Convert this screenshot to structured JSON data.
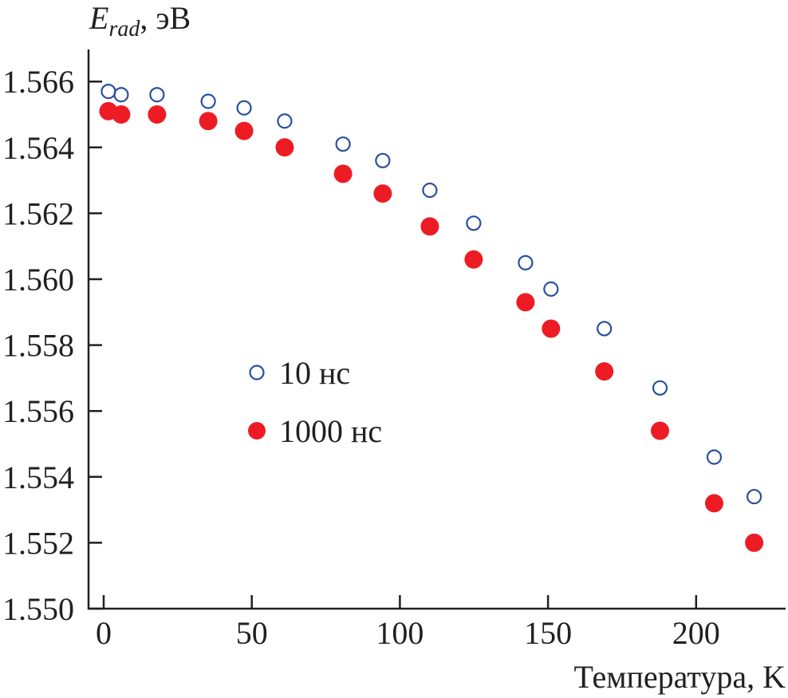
{
  "chart_data": {
    "type": "scatter",
    "title": "",
    "ylabel": {
      "main": "E",
      "subscript": "rad",
      "suffix": ", эВ"
    },
    "xlabel": "Температура, K",
    "xlim": [
      -5,
      230
    ],
    "ylim": [
      1.55,
      1.567
    ],
    "xticks": [
      0,
      50,
      100,
      150,
      200
    ],
    "xtick_labels": [
      "0",
      "50",
      "100",
      "150",
      "200"
    ],
    "yticks": [
      1.55,
      1.552,
      1.554,
      1.556,
      1.558,
      1.56,
      1.562,
      1.564,
      1.566
    ],
    "ytick_labels": [
      "1.550",
      "1.552",
      "1.554",
      "1.556",
      "1.558",
      "1.560",
      "1.562",
      "1.564",
      "1.566"
    ],
    "grid": false,
    "legend_position": "center-left",
    "series": [
      {
        "name": "10 нс",
        "marker": "open-circle",
        "color": "#2a4fa0",
        "x": [
          1.6,
          5.9,
          18,
          35.3,
          47.4,
          61.1,
          80.8,
          94.2,
          110.1,
          124.9,
          142.4,
          151,
          169,
          187.8,
          206.1,
          219.6
        ],
        "y": [
          1.5657,
          1.5656,
          1.5656,
          1.5654,
          1.5652,
          1.5648,
          1.5641,
          1.5636,
          1.5627,
          1.5617,
          1.5605,
          1.5597,
          1.5585,
          1.5567,
          1.5546,
          1.5534
        ]
      },
      {
        "name": "1000 нс",
        "marker": "filled-circle",
        "color": "#ed1c24",
        "x": [
          1.6,
          5.9,
          18,
          35.3,
          47.4,
          61.1,
          80.8,
          94.2,
          110.1,
          124.9,
          142.4,
          151,
          169,
          187.8,
          206.1,
          219.6
        ],
        "y": [
          1.5651,
          1.565,
          1.565,
          1.5648,
          1.5645,
          1.564,
          1.5632,
          1.5626,
          1.5616,
          1.5606,
          1.5593,
          1.5585,
          1.5572,
          1.5554,
          1.5532,
          1.552
        ]
      }
    ]
  }
}
